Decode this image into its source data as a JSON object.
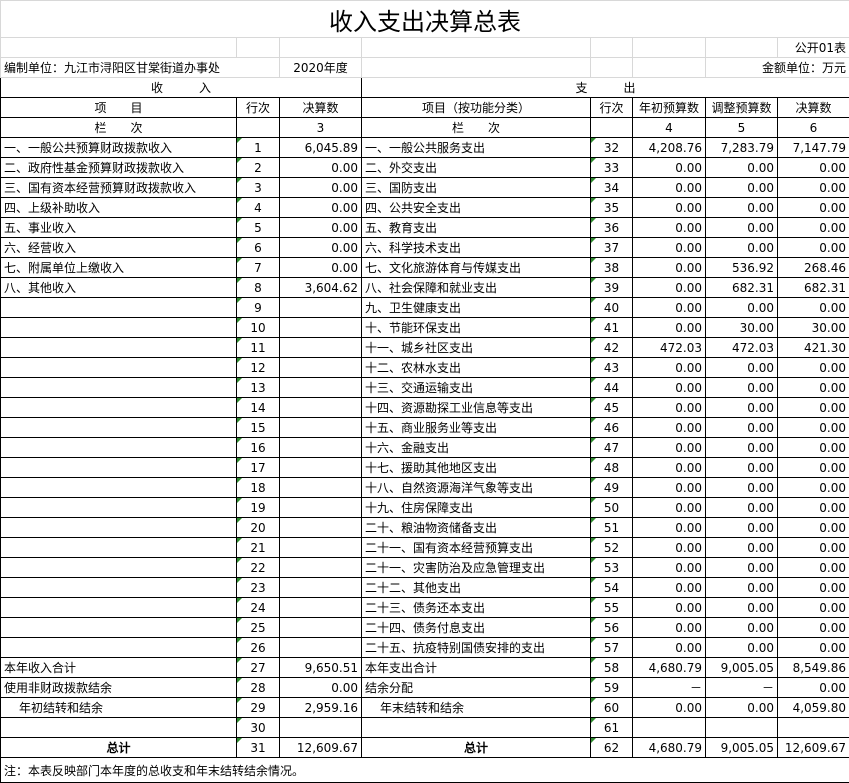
{
  "title": "收入支出决算总表",
  "form_no": "公开01表",
  "unit": "编制单位：九江市浔阳区甘棠街道办事处",
  "year": "2020年度",
  "currency": "金额单位：万元",
  "header": {
    "income": "收　　　入",
    "expense": "支　　　出",
    "item": "项　　目",
    "line_no": "行次",
    "final": "决算数",
    "expense_item": "项目（按功能分类）",
    "expense_line_no": "行次",
    "budget_begin": "年初预算数",
    "budget_adjusted": "调整预算数",
    "expense_final": "决算数",
    "col_label": "栏　　次",
    "col3": "3",
    "expense_col_label": "栏　　次",
    "col4": "4",
    "col5": "5",
    "col6": "6"
  },
  "rows": [
    [
      "一、一般公共预算财政拨款收入",
      "1",
      "6,045.89",
      "一、一般公共服务支出",
      "32",
      "4,208.76",
      "7,283.79",
      "7,147.79"
    ],
    [
      "二、政府性基金预算财政拨款收入",
      "2",
      "0.00",
      "二、外交支出",
      "33",
      "0.00",
      "0.00",
      "0.00"
    ],
    [
      "三、国有资本经营预算财政拨款收入",
      "3",
      "0.00",
      "三、国防支出",
      "34",
      "0.00",
      "0.00",
      "0.00"
    ],
    [
      "四、上级补助收入",
      "4",
      "0.00",
      "四、公共安全支出",
      "35",
      "0.00",
      "0.00",
      "0.00"
    ],
    [
      "五、事业收入",
      "5",
      "0.00",
      "五、教育支出",
      "36",
      "0.00",
      "0.00",
      "0.00"
    ],
    [
      "六、经营收入",
      "6",
      "0.00",
      "六、科学技术支出",
      "37",
      "0.00",
      "0.00",
      "0.00"
    ],
    [
      "七、附属单位上缴收入",
      "7",
      "0.00",
      "七、文化旅游体育与传媒支出",
      "38",
      "0.00",
      "536.92",
      "268.46"
    ],
    [
      "八、其他收入",
      "8",
      "3,604.62",
      "八、社会保障和就业支出",
      "39",
      "0.00",
      "682.31",
      "682.31"
    ],
    [
      null,
      "9",
      null,
      "九、卫生健康支出",
      "40",
      "0.00",
      "0.00",
      "0.00"
    ],
    [
      null,
      "10",
      null,
      "十、节能环保支出",
      "41",
      "0.00",
      "30.00",
      "30.00"
    ],
    [
      null,
      "11",
      null,
      "十一、城乡社区支出",
      "42",
      "472.03",
      "472.03",
      "421.30"
    ],
    [
      null,
      "12",
      null,
      "十二、农林水支出",
      "43",
      "0.00",
      "0.00",
      "0.00"
    ],
    [
      null,
      "13",
      null,
      "十三、交通运输支出",
      "44",
      "0.00",
      "0.00",
      "0.00"
    ],
    [
      null,
      "14",
      null,
      "十四、资源勘探工业信息等支出",
      "45",
      "0.00",
      "0.00",
      "0.00"
    ],
    [
      null,
      "15",
      null,
      "十五、商业服务业等支出",
      "46",
      "0.00",
      "0.00",
      "0.00"
    ],
    [
      null,
      "16",
      null,
      "十六、金融支出",
      "47",
      "0.00",
      "0.00",
      "0.00"
    ],
    [
      null,
      "17",
      null,
      "十七、援助其他地区支出",
      "48",
      "0.00",
      "0.00",
      "0.00"
    ],
    [
      null,
      "18",
      null,
      "十八、自然资源海洋气象等支出",
      "49",
      "0.00",
      "0.00",
      "0.00"
    ],
    [
      null,
      "19",
      null,
      "十九、住房保障支出",
      "50",
      "0.00",
      "0.00",
      "0.00"
    ],
    [
      null,
      "20",
      null,
      "二十、粮油物资储备支出",
      "51",
      "0.00",
      "0.00",
      "0.00"
    ],
    [
      null,
      "21",
      null,
      "二十一、国有资本经营预算支出",
      "52",
      "0.00",
      "0.00",
      "0.00"
    ],
    [
      null,
      "22",
      null,
      "二十一、灾害防治及应急管理支出",
      "53",
      "0.00",
      "0.00",
      "0.00"
    ],
    [
      null,
      "23",
      null,
      "二十二、其他支出",
      "54",
      "0.00",
      "0.00",
      "0.00"
    ],
    [
      null,
      "24",
      null,
      "二十三、债务还本支出",
      "55",
      "0.00",
      "0.00",
      "0.00"
    ],
    [
      null,
      "25",
      null,
      "二十四、债务付息支出",
      "56",
      "0.00",
      "0.00",
      "0.00"
    ],
    [
      null,
      "26",
      null,
      "二十五、抗疫特别国债安排的支出",
      "57",
      "0.00",
      "0.00",
      "0.00"
    ],
    [
      "本年收入合计",
      "27",
      "9,650.51",
      "本年支出合计",
      "58",
      "4,680.79",
      "9,005.05",
      "8,549.86"
    ],
    [
      "使用非财政拨款结余",
      "28",
      "0.00",
      "结余分配",
      "59",
      "－",
      "－",
      "0.00"
    ],
    [
      "年初结转和结余",
      "29",
      "2,959.16",
      "年末结转和结余",
      "60",
      "0.00",
      "0.00",
      "4,059.80"
    ],
    [
      null,
      "30",
      null,
      null,
      "61",
      null,
      null,
      null
    ],
    [
      "总计",
      "31",
      "12,609.67",
      "总计",
      "62",
      "4,680.79",
      "9,005.05",
      "12,609.67"
    ]
  ],
  "note": "注：本表反映部门本年度的总收支和年末结转结余情况。"
}
